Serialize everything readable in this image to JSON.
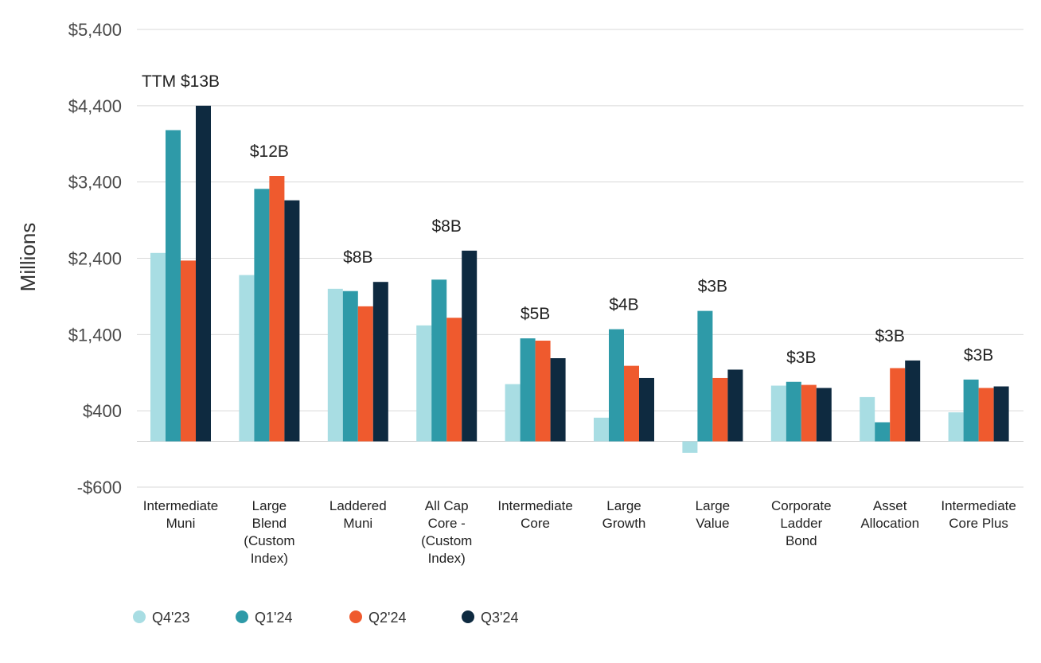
{
  "chart_data": {
    "type": "bar",
    "ylabel": "Millions",
    "ylim": [
      -600,
      5400
    ],
    "yticks": [
      -600,
      400,
      1400,
      2400,
      3400,
      4400,
      5400
    ],
    "ytick_labels": [
      "-$600",
      "$400",
      "$1,400",
      "$2,400",
      "$3,400",
      "$4,400",
      "$5,400"
    ],
    "grid": true,
    "legend_position": "bottom-left",
    "categories": [
      [
        "Intermediate",
        "Muni"
      ],
      [
        "Large",
        "Blend",
        "(Custom",
        "Index)"
      ],
      [
        "Laddered",
        "Muni"
      ],
      [
        "All Cap",
        "Core -",
        "(Custom",
        "Index)"
      ],
      [
        "Intermediate",
        "Core"
      ],
      [
        "Large",
        "Growth"
      ],
      [
        "Large",
        "Value"
      ],
      [
        "Corporate",
        "Ladder",
        "Bond"
      ],
      [
        "Asset",
        "Allocation"
      ],
      [
        "Intermediate",
        "Core Plus"
      ]
    ],
    "totals": [
      "TTM $13B",
      "$12B",
      "$8B",
      "$8B",
      "$5B",
      "$4B",
      "$3B",
      "$3B",
      "$3B",
      "$3B"
    ],
    "series": [
      {
        "name": "Q4'23",
        "color": "#a8dde3",
        "values": [
          2470,
          2180,
          2000,
          1520,
          750,
          310,
          -150,
          730,
          580,
          380
        ]
      },
      {
        "name": "Q1'24",
        "color": "#2e9aa8",
        "values": [
          4080,
          3310,
          1970,
          2120,
          1350,
          1470,
          1710,
          780,
          250,
          810
        ]
      },
      {
        "name": "Q2'24",
        "color": "#ef5a2e",
        "values": [
          2370,
          3480,
          1770,
          1620,
          1320,
          990,
          830,
          740,
          960,
          700
        ]
      },
      {
        "name": "Q3'24",
        "color": "#0e2a40",
        "values": [
          4400,
          3160,
          2090,
          2500,
          1090,
          830,
          940,
          700,
          1060,
          720
        ]
      }
    ]
  }
}
